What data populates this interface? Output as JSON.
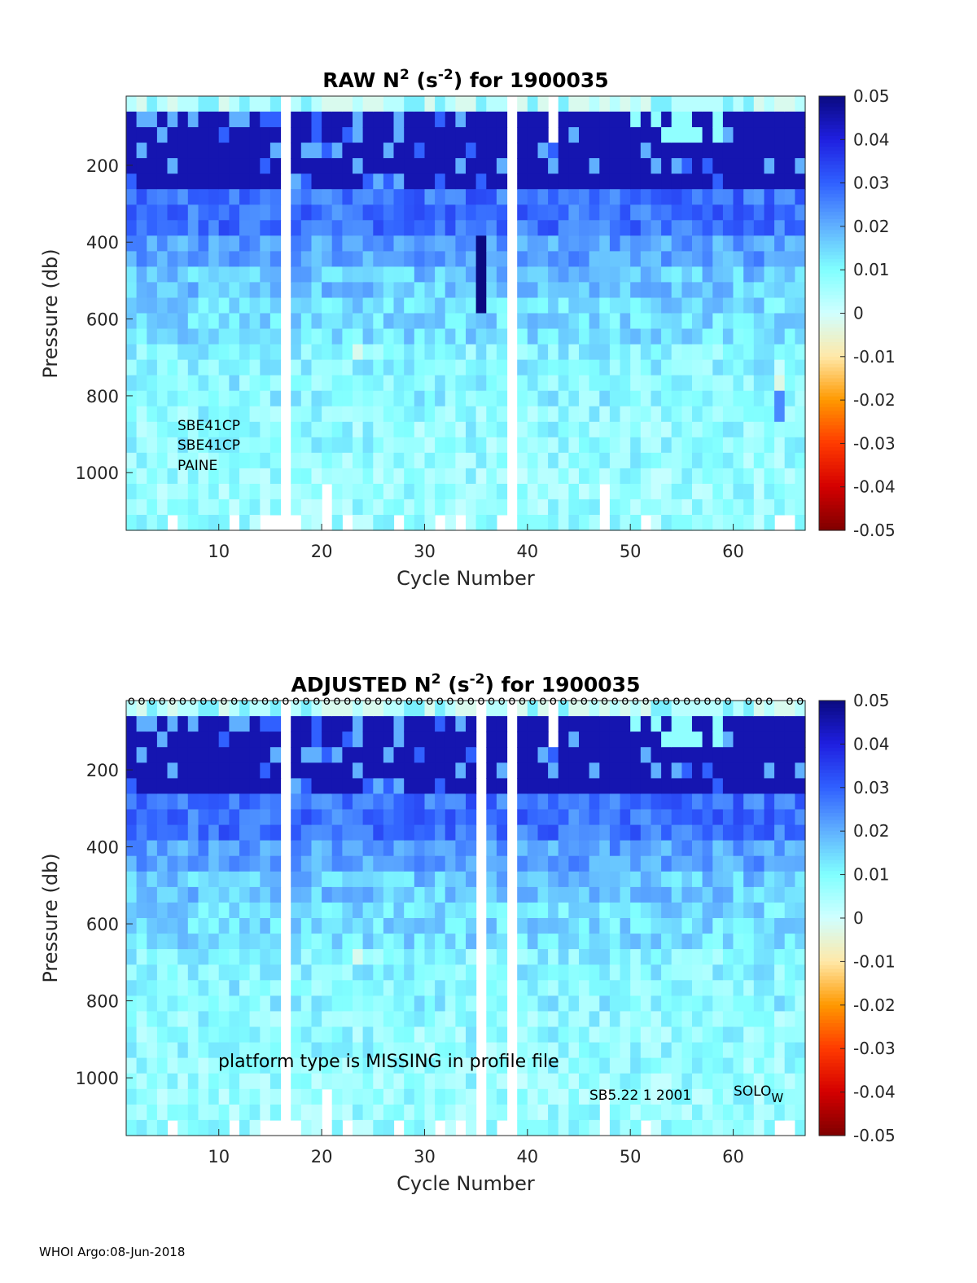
{
  "footer": "WHOI Argo:08-Jun-2018",
  "colors": {
    "colormap": [
      "#7f0000",
      "#d40000",
      "#ff3a00",
      "#ff9900",
      "#ffe8a8",
      "#d0ffff",
      "#80ffff",
      "#60b0ff",
      "#3060ff",
      "#1f1fe0",
      "#0a0a80"
    ],
    "missing": "#ffffff",
    "axis": "#262626"
  },
  "chart_data": [
    {
      "type": "heatmap",
      "id": "raw",
      "title_prefix": "RAW N",
      "title_sup1": "2",
      "title_mid": " (s",
      "title_sup2": "-2",
      "title_suffix": ") for 1900035",
      "xlabel": "Cycle Number",
      "ylabel": "Pressure (db)",
      "xlim": [
        1,
        67
      ],
      "ylim": [
        1150,
        20
      ],
      "xticks": [
        10,
        20,
        30,
        40,
        50,
        60
      ],
      "yticks": [
        200,
        400,
        600,
        800,
        1000
      ],
      "clim": [
        -0.05,
        0.05
      ],
      "cbar_ticks": [
        "0.05",
        "0.04",
        "0.03",
        "0.02",
        "0.01",
        "0",
        "-0.01",
        "-0.02",
        "-0.03",
        "-0.04",
        "-0.05"
      ],
      "missing_cycles": [
        16,
        38
      ],
      "partial_missing": [
        {
          "cycle": 42,
          "above_pressure": 160
        }
      ],
      "anomalies": [
        {
          "cycle": 35,
          "pmin": 380,
          "pmax": 600,
          "value": 0.05
        },
        {
          "cycle": 23,
          "pmin": 660,
          "pmax": 700,
          "value": -0.002
        },
        {
          "cycle": 64,
          "pmin": 720,
          "pmax": 760,
          "value": 0.001
        },
        {
          "cycle": 64,
          "pmin": 760,
          "pmax": 800,
          "value": -0.003
        },
        {
          "cycle": 64,
          "pmin": 800,
          "pmax": 850,
          "value": 0.025
        }
      ],
      "annotations": [
        "SBE41CP",
        "SBE41CP",
        "PAINE"
      ],
      "qc_flags": null
    },
    {
      "type": "heatmap",
      "id": "adjusted",
      "title_prefix": "ADJUSTED N",
      "title_sup1": "2",
      "title_mid": " (s",
      "title_sup2": "-2",
      "title_suffix": ") for 1900035",
      "xlabel": "Cycle Number",
      "ylabel": "Pressure (db)",
      "xlim": [
        1,
        67
      ],
      "ylim": [
        1150,
        20
      ],
      "xticks": [
        10,
        20,
        30,
        40,
        50,
        60
      ],
      "yticks": [
        200,
        400,
        600,
        800,
        1000
      ],
      "clim": [
        -0.05,
        0.05
      ],
      "cbar_ticks": [
        "0.05",
        "0.04",
        "0.03",
        "0.02",
        "0.01",
        "0",
        "-0.01",
        "-0.02",
        "-0.03",
        "-0.04",
        "-0.05"
      ],
      "missing_cycles": [
        16,
        35,
        38
      ],
      "partial_missing": [
        {
          "cycle": 42,
          "above_pressure": 160
        }
      ],
      "anomalies": [
        {
          "cycle": 23,
          "pmin": 660,
          "pmax": 700,
          "value": -0.002
        }
      ],
      "annotations": [
        "platform type is MISSING in profile file",
        "SB5.22  1 2001",
        "SOLO",
        "W"
      ],
      "qc_flag_symbol": "o",
      "qc_flag_absent_cycles": [
        60,
        64
      ]
    }
  ]
}
